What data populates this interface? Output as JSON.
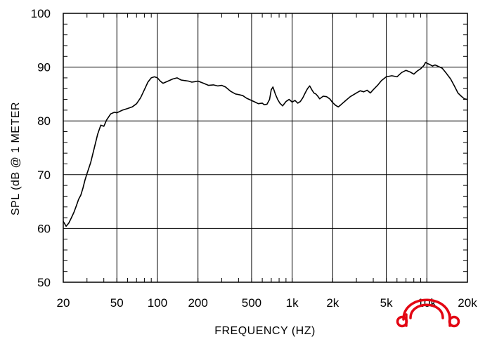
{
  "chart_data": {
    "type": "line",
    "xlabel": "FREQUENCY  (HZ)",
    "ylabel": "SPL (dB @ 1 METER",
    "xscale": "log",
    "xlim": [
      20,
      20000
    ],
    "ylim": [
      50,
      100
    ],
    "grid": true,
    "x_ticks": [
      {
        "value": 20,
        "label": "20"
      },
      {
        "value": 50,
        "label": "50"
      },
      {
        "value": 100,
        "label": "100"
      },
      {
        "value": 200,
        "label": "200"
      },
      {
        "value": 500,
        "label": "500"
      },
      {
        "value": 1000,
        "label": "1k"
      },
      {
        "value": 2000,
        "label": "2k"
      },
      {
        "value": 5000,
        "label": "5k"
      },
      {
        "value": 10000,
        "label": "10k"
      },
      {
        "value": 20000,
        "label": "20k"
      }
    ],
    "y_ticks": [
      {
        "value": 50,
        "label": "50"
      },
      {
        "value": 60,
        "label": "60"
      },
      {
        "value": 70,
        "label": "70"
      },
      {
        "value": 80,
        "label": "80"
      },
      {
        "value": 90,
        "label": "90"
      },
      {
        "value": 100,
        "label": "100"
      }
    ],
    "series": [
      {
        "color": "#000000",
        "points": [
          [
            20,
            61.3
          ],
          [
            21,
            60.4
          ],
          [
            22,
            61.0
          ],
          [
            23,
            62.0
          ],
          [
            24,
            63.0
          ],
          [
            25,
            64.2
          ],
          [
            26,
            65.4
          ],
          [
            27,
            66.2
          ],
          [
            28,
            67.5
          ],
          [
            29,
            69.0
          ],
          [
            30,
            70.2
          ],
          [
            32,
            72.3
          ],
          [
            34,
            75.0
          ],
          [
            36,
            77.5
          ],
          [
            38,
            79.2
          ],
          [
            40,
            79.0
          ],
          [
            42,
            80.2
          ],
          [
            45,
            81.3
          ],
          [
            48,
            81.6
          ],
          [
            50,
            81.5
          ],
          [
            55,
            82.0
          ],
          [
            60,
            82.3
          ],
          [
            65,
            82.6
          ],
          [
            70,
            83.2
          ],
          [
            75,
            84.3
          ],
          [
            80,
            85.8
          ],
          [
            85,
            87.2
          ],
          [
            90,
            88.0
          ],
          [
            95,
            88.2
          ],
          [
            100,
            88.0
          ],
          [
            105,
            87.4
          ],
          [
            110,
            87.0
          ],
          [
            120,
            87.4
          ],
          [
            130,
            87.8
          ],
          [
            140,
            88.0
          ],
          [
            150,
            87.6
          ],
          [
            160,
            87.5
          ],
          [
            170,
            87.4
          ],
          [
            180,
            87.2
          ],
          [
            190,
            87.3
          ],
          [
            200,
            87.4
          ],
          [
            220,
            87.0
          ],
          [
            240,
            86.6
          ],
          [
            260,
            86.7
          ],
          [
            280,
            86.5
          ],
          [
            300,
            86.6
          ],
          [
            320,
            86.3
          ],
          [
            350,
            85.5
          ],
          [
            380,
            85.0
          ],
          [
            400,
            84.9
          ],
          [
            430,
            84.7
          ],
          [
            460,
            84.2
          ],
          [
            500,
            83.8
          ],
          [
            530,
            83.5
          ],
          [
            560,
            83.2
          ],
          [
            600,
            83.3
          ],
          [
            620,
            83.0
          ],
          [
            650,
            83.1
          ],
          [
            680,
            84.0
          ],
          [
            700,
            85.8
          ],
          [
            720,
            86.3
          ],
          [
            750,
            85.0
          ],
          [
            780,
            84.0
          ],
          [
            810,
            83.3
          ],
          [
            850,
            82.8
          ],
          [
            900,
            83.6
          ],
          [
            950,
            84.0
          ],
          [
            1000,
            83.5
          ],
          [
            1050,
            83.8
          ],
          [
            1100,
            83.3
          ],
          [
            1150,
            83.6
          ],
          [
            1200,
            84.3
          ],
          [
            1250,
            85.2
          ],
          [
            1300,
            86.0
          ],
          [
            1350,
            86.5
          ],
          [
            1400,
            85.8
          ],
          [
            1450,
            85.2
          ],
          [
            1500,
            85.0
          ],
          [
            1550,
            84.6
          ],
          [
            1600,
            84.1
          ],
          [
            1700,
            84.6
          ],
          [
            1800,
            84.5
          ],
          [
            1900,
            84.1
          ],
          [
            2000,
            83.4
          ],
          [
            2100,
            82.9
          ],
          [
            2200,
            82.6
          ],
          [
            2300,
            83.0
          ],
          [
            2500,
            83.8
          ],
          [
            2700,
            84.5
          ],
          [
            3000,
            85.2
          ],
          [
            3200,
            85.6
          ],
          [
            3400,
            85.4
          ],
          [
            3600,
            85.7
          ],
          [
            3800,
            85.2
          ],
          [
            4000,
            85.8
          ],
          [
            4300,
            86.6
          ],
          [
            4600,
            87.5
          ],
          [
            5000,
            88.2
          ],
          [
            5500,
            88.4
          ],
          [
            6000,
            88.2
          ],
          [
            6500,
            89.0
          ],
          [
            7000,
            89.4
          ],
          [
            7500,
            89.1
          ],
          [
            8000,
            88.7
          ],
          [
            8500,
            89.3
          ],
          [
            9000,
            89.7
          ],
          [
            9500,
            90.3
          ],
          [
            9800,
            90.9
          ],
          [
            10000,
            90.7
          ],
          [
            10500,
            90.5
          ],
          [
            11000,
            90.2
          ],
          [
            11500,
            90.4
          ],
          [
            12000,
            90.2
          ],
          [
            13000,
            89.8
          ],
          [
            14000,
            88.8
          ],
          [
            15000,
            87.8
          ],
          [
            16000,
            86.5
          ],
          [
            17000,
            85.2
          ],
          [
            18000,
            84.6
          ],
          [
            19000,
            84.1
          ],
          [
            20000,
            84.0
          ]
        ]
      }
    ]
  },
  "logo": {
    "name": "headphone-logo",
    "color": "#e30613"
  }
}
